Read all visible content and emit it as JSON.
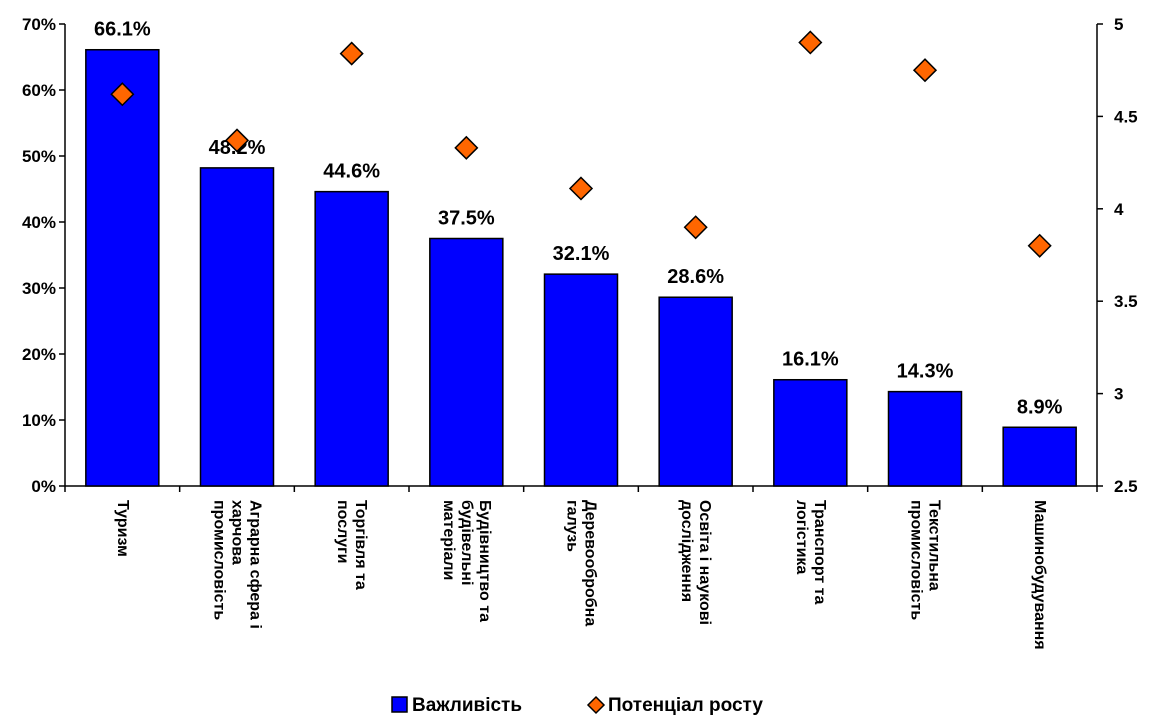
{
  "chart_data": {
    "type": "bar",
    "categories": [
      [
        "Туризм"
      ],
      [
        "Аграрна сфера і",
        "харчова",
        "промисловість"
      ],
      [
        "Торгівля та",
        "послуги"
      ],
      [
        "Будівництво та",
        "будівельні",
        "матеріали"
      ],
      [
        "Деревообробна",
        "галузь"
      ],
      [
        "Освіта і наукові",
        "дослідження"
      ],
      [
        "Транспорт та",
        "логістика"
      ],
      [
        "Текстильна",
        "промисловість"
      ],
      [
        "Машинобудування"
      ]
    ],
    "series": [
      {
        "name": "Важливість",
        "type": "bar",
        "axis": "left",
        "color": "#0000ff",
        "values": [
          66.1,
          48.2,
          44.6,
          37.5,
          32.1,
          28.6,
          16.1,
          14.3,
          8.9
        ],
        "labels": [
          "66.1%",
          "48.2%",
          "44.6%",
          "37.5%",
          "32.1%",
          "28.6%",
          "16.1%",
          "14.3%",
          "8.9%"
        ]
      },
      {
        "name": "Потенціал росту",
        "type": "scatter",
        "marker": "diamond",
        "axis": "right",
        "color": "#ff6600",
        "values": [
          4.62,
          4.37,
          4.84,
          4.33,
          4.11,
          3.9,
          4.9,
          4.75,
          3.8
        ]
      }
    ],
    "y_left": {
      "ylim": [
        0,
        70
      ],
      "ticks": [
        0,
        10,
        20,
        30,
        40,
        50,
        60,
        70
      ],
      "tick_labels": [
        "0%",
        "10%",
        "20%",
        "30%",
        "40%",
        "50%",
        "60%",
        "70%"
      ]
    },
    "y_right": {
      "ylim": [
        2.5,
        5
      ],
      "ticks": [
        2.5,
        3,
        3.5,
        4,
        4.5,
        5
      ],
      "tick_labels": [
        "2.5",
        "3",
        "3.5",
        "4",
        "4.5",
        "5"
      ]
    },
    "legend": {
      "position": "bottom-center",
      "items": [
        "Важливість",
        "Потенціал росту"
      ]
    },
    "grid": false
  }
}
